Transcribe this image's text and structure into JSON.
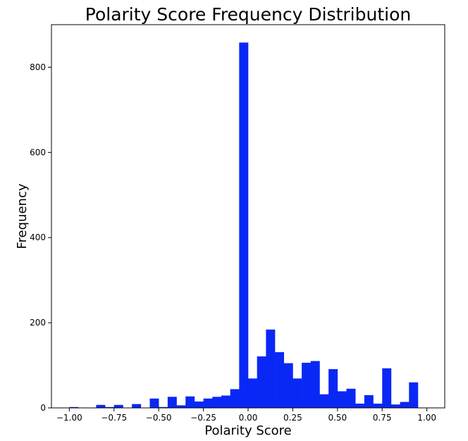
{
  "chart_data": {
    "type": "bar",
    "title": "Polarity Score Frequency Distribution",
    "xlabel": "Polarity Score",
    "ylabel": "Frequency",
    "xlim": [
      -1.1,
      1.1
    ],
    "ylim": [
      0,
      900
    ],
    "grid": false,
    "legend": "none",
    "bar_color": "#0a28f5",
    "x_ticks": [
      -1.0,
      -0.75,
      -0.5,
      -0.25,
      0.0,
      0.25,
      0.5,
      0.75,
      1.0
    ],
    "x_tick_labels": [
      "−1.00",
      "−0.75",
      "−0.50",
      "−0.25",
      "0.00",
      "0.25",
      "0.50",
      "0.75",
      "1.00"
    ],
    "y_ticks": [
      0,
      200,
      400,
      600,
      800
    ],
    "y_tick_labels": [
      "0",
      "200",
      "400",
      "600",
      "800"
    ],
    "bin_edges": [
      -1.0,
      -0.95,
      -0.9,
      -0.85,
      -0.8,
      -0.75,
      -0.7,
      -0.65,
      -0.6,
      -0.55,
      -0.5,
      -0.45,
      -0.4,
      -0.35,
      -0.3,
      -0.25,
      -0.2,
      -0.15,
      -0.1,
      -0.05,
      0.0,
      0.05,
      0.1,
      0.15,
      0.2,
      0.25,
      0.3,
      0.35,
      0.4,
      0.45,
      0.5,
      0.55,
      0.6,
      0.65,
      0.7,
      0.75,
      0.8,
      0.85,
      0.9,
      0.95,
      1.0
    ],
    "values": [
      2,
      0,
      0,
      7,
      2,
      7,
      0,
      9,
      0,
      22,
      2,
      26,
      6,
      27,
      15,
      22,
      26,
      29,
      44,
      858,
      69,
      121,
      184,
      131,
      105,
      69,
      106,
      110,
      32,
      91,
      39,
      45,
      10,
      30,
      10,
      93,
      8,
      14,
      60,
      0
    ]
  }
}
